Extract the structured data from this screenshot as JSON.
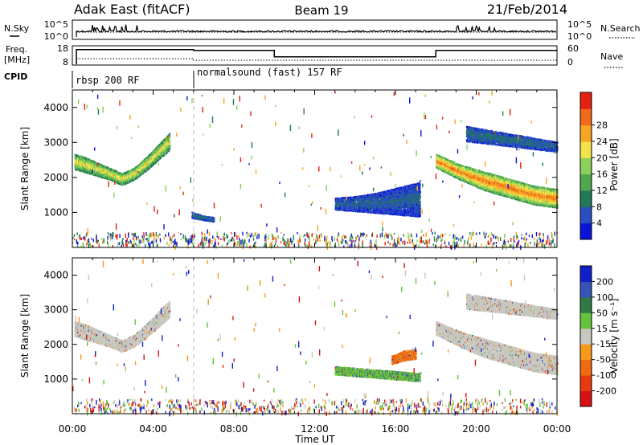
{
  "header": {
    "station": "Adak East (fitACF)",
    "beam": "Beam 19",
    "date": "21/Feb/2014"
  },
  "nsky_panel": {
    "left_label": "N.Sky",
    "right_label": "N.Search",
    "left_ticks": [
      "10^5",
      "10^0"
    ],
    "right_ticks": [
      "10^5",
      "10^0"
    ]
  },
  "freq_panel": {
    "left_label_1": "Freq.",
    "left_label_2": "[MHz]",
    "right_label": "Nave",
    "left_ticks": [
      "18",
      "8"
    ],
    "right_ticks": [
      "60",
      "0"
    ],
    "freq_mhz": [
      {
        "from": 0.2,
        "to": 6.0,
        "value": 17.0
      },
      {
        "from": 6.0,
        "to": 10.0,
        "value": 16.5
      },
      {
        "from": 10.0,
        "to": 18.0,
        "value": 12.0
      },
      {
        "from": 18.0,
        "to": 24.0,
        "value": 16.5
      }
    ]
  },
  "cpid_panel": {
    "label": "CPID",
    "programs": [
      {
        "name": "rbsp 200 RF",
        "start_hr": 0
      },
      {
        "name": "normalsound (fast) 157 RF",
        "start_hr": 6
      }
    ]
  },
  "power_panel": {
    "ylabel": "Slant Range [km]",
    "colorbar_label": "Power [dB]",
    "colorbar_ticks": [
      "28",
      "24",
      "20",
      "16",
      "12",
      "8",
      "4"
    ]
  },
  "velocity_panel": {
    "ylabel": "Slant Range [km]",
    "colorbar_label": "Velocity [m s⁻¹]",
    "colorbar_ticks": [
      "200",
      "100",
      "50",
      "15",
      "-15",
      "-50",
      "-100",
      "-200"
    ]
  },
  "xaxis": {
    "title": "Time UT",
    "ticks": [
      "00:00",
      "04:00",
      "08:00",
      "12:00",
      "16:00",
      "20:00",
      "00:00"
    ]
  },
  "colors": {
    "power_scale": [
      "#0a14d8",
      "#2a4fc0",
      "#1f7a55",
      "#4fa850",
      "#8bd05a",
      "#f2e34a",
      "#f5a623",
      "#f06a1a",
      "#e52010"
    ],
    "velocity_scale": [
      "#1020c8",
      "#3553b8",
      "#2f7a45",
      "#66c23b",
      "#c8c8c0",
      "#f59a1a",
      "#f06a10",
      "#e83a10",
      "#d81010"
    ]
  },
  "chart_data": {
    "type": "heatmap",
    "x_unit": "hours UT",
    "xlim": [
      0,
      24
    ],
    "ylim_km": [
      0,
      4500
    ],
    "y_ticks_km": [
      1000,
      2000,
      3000,
      4000
    ],
    "power_regions": [
      {
        "t0": 0.1,
        "t1": 4.8,
        "r_top": [
          2700,
          2600,
          2450,
          2300,
          2150,
          2300,
          2600,
          2950,
          3300
        ],
        "r_bot": [
          2250,
          2150,
          2050,
          1950,
          1800,
          1950,
          2200,
          2500,
          2800
        ],
        "core_db": 18
      },
      {
        "t0": 5.9,
        "t1": 7.0,
        "r_top": [
          1050,
          950,
          900
        ],
        "r_bot": [
          850,
          800,
          750
        ],
        "core_db": 6
      },
      {
        "t0": 13.0,
        "t1": 17.2,
        "r_top": [
          1450,
          1500,
          1600,
          1750,
          1900
        ],
        "r_bot": [
          1100,
          1050,
          1000,
          950,
          900
        ],
        "core_db": 5
      },
      {
        "t0": 18.0,
        "t1": 24.0,
        "r_top": [
          2700,
          2400,
          2200,
          2000,
          1800,
          1700
        ],
        "r_bot": [
          2300,
          1950,
          1650,
          1450,
          1250,
          1150
        ],
        "core_db": 24
      },
      {
        "t0": 19.5,
        "t1": 24.0,
        "r_top": [
          3500,
          3350,
          3200,
          3050
        ],
        "r_bot": [
          3050,
          2950,
          2850,
          2750
        ],
        "core_db": 6
      }
    ],
    "velocity_regions": [
      {
        "t0": 0.1,
        "t1": 4.8,
        "r_top": [
          2700,
          2600,
          2450,
          2300,
          2150,
          2300,
          2600,
          2950,
          3300
        ],
        "r_bot": [
          2250,
          2150,
          2050,
          1950,
          1800,
          1950,
          2200,
          2500,
          2800
        ],
        "core_ms": 0
      },
      {
        "t0": 13.0,
        "t1": 17.2,
        "r_top": [
          1400,
          1350,
          1300,
          1250,
          1200
        ],
        "r_bot": [
          1150,
          1100,
          1050,
          1000,
          950
        ],
        "core_ms": 40
      },
      {
        "t0": 15.8,
        "t1": 17.0,
        "r_top": [
          1700,
          1850,
          1900
        ],
        "r_bot": [
          1450,
          1550,
          1600
        ],
        "core_ms": -60
      },
      {
        "t0": 18.0,
        "t1": 24.0,
        "r_top": [
          2700,
          2400,
          2200,
          2000,
          1800,
          1700
        ],
        "r_bot": [
          2300,
          1950,
          1650,
          1450,
          1250,
          1150
        ],
        "core_ms": 0
      },
      {
        "t0": 19.5,
        "t1": 24.0,
        "r_top": [
          3500,
          3350,
          3200,
          3050
        ],
        "r_bot": [
          3050,
          2950,
          2850,
          2750
        ],
        "core_ms": 0
      }
    ]
  }
}
